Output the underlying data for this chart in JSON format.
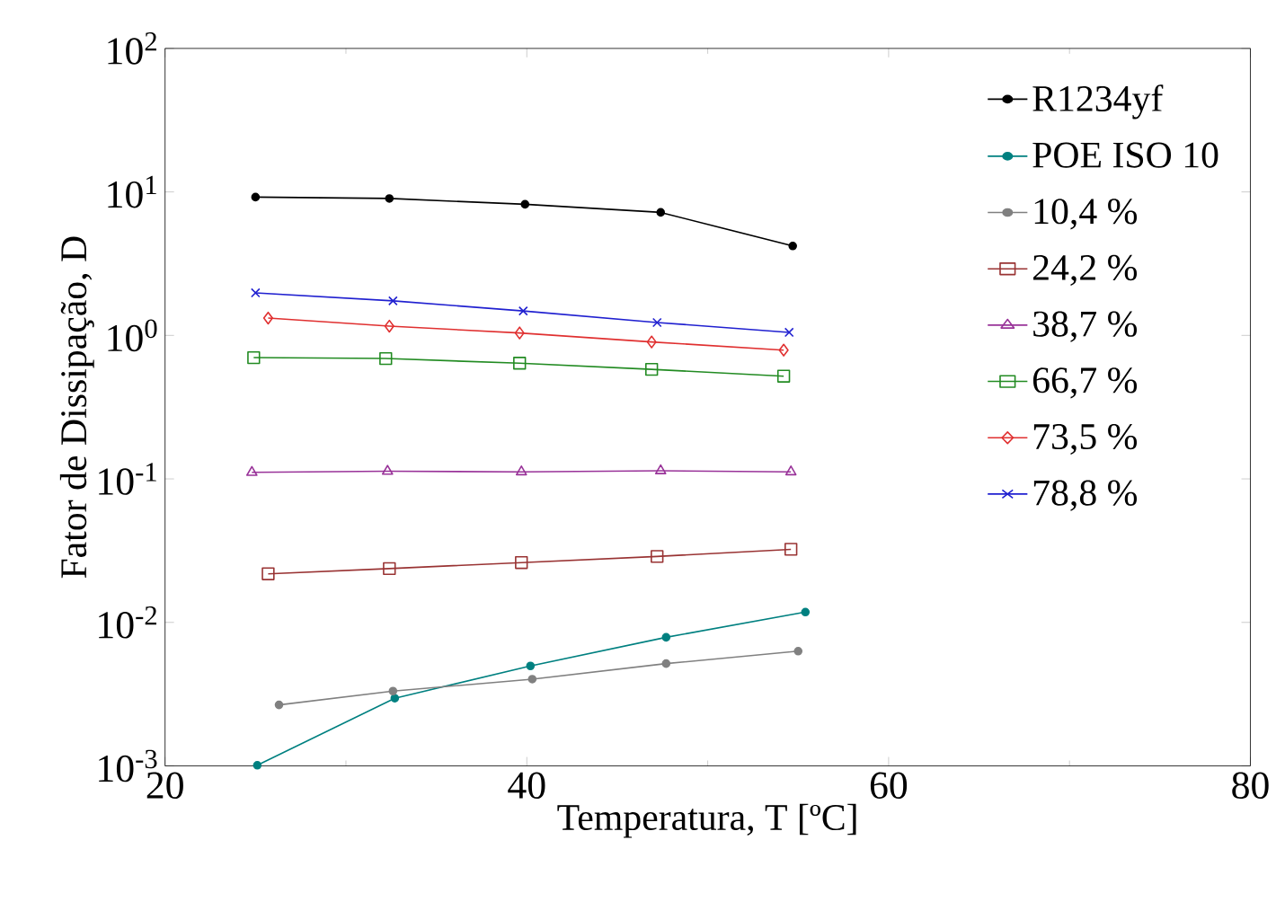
{
  "chart_data": {
    "type": "line",
    "xlabel": "Temperatura, T [ºC]",
    "ylabel": "Fator de Dissipação, D",
    "xlim": [
      20,
      80
    ],
    "xticks": [
      20,
      40,
      60,
      80
    ],
    "ylim": [
      0.001,
      100
    ],
    "yticks": [
      {
        "value": 0.001,
        "label": "10$^{-3}$"
      },
      {
        "value": 0.01,
        "label": "10$^{-2}$"
      },
      {
        "value": 0.1,
        "label": "10$^{-1}$"
      },
      {
        "value": 1,
        "label": "10$^{0}$"
      },
      {
        "value": 10,
        "label": "10$^{1}$"
      },
      {
        "value": 100,
        "label": "10$^{2}$"
      }
    ],
    "log": "y",
    "grid": false,
    "legend": "right",
    "line_style": "solid",
    "series": [
      {
        "name": "R1234yf",
        "color": "#000000",
        "marker": "circle",
        "x": [
          25.0,
          32.4,
          39.9,
          47.4,
          54.7
        ],
        "values": [
          9.2,
          9.0,
          8.2,
          7.2,
          4.2
        ]
      },
      {
        "name": "POE ISO 10",
        "color": "#008080",
        "marker": "circle",
        "x": [
          25.1,
          32.7,
          40.2,
          47.7,
          55.4
        ],
        "values": [
          0.00101,
          0.00296,
          0.00497,
          0.00787,
          0.0118
        ]
      },
      {
        "name": "10,4 %",
        "color": "#808080",
        "marker": "circle",
        "x": [
          26.3,
          32.6,
          40.3,
          47.7,
          55.0
        ],
        "values": [
          0.00266,
          0.00332,
          0.00402,
          0.00516,
          0.0063
        ]
      },
      {
        "name": "24,2 %",
        "color": "#993333",
        "marker": "square",
        "x": [
          25.7,
          32.4,
          39.7,
          47.2,
          54.6
        ],
        "values": [
          0.0218,
          0.0237,
          0.0261,
          0.0288,
          0.0323
        ]
      },
      {
        "name": "38,7 %",
        "color": "#993399",
        "marker": "triangle",
        "x": [
          24.8,
          32.3,
          39.7,
          47.4,
          54.6
        ],
        "values": [
          0.111,
          0.113,
          0.112,
          0.114,
          0.112
        ]
      },
      {
        "name": "66,7 %",
        "color": "#228B22",
        "marker": "square",
        "x": [
          24.9,
          32.2,
          39.6,
          46.9,
          54.2
        ],
        "values": [
          0.7,
          0.69,
          0.64,
          0.58,
          0.52
        ]
      },
      {
        "name": "73,5 %",
        "color": "#E03030",
        "marker": "diamond",
        "x": [
          25.7,
          32.4,
          39.6,
          46.9,
          54.2
        ],
        "values": [
          1.32,
          1.16,
          1.04,
          0.9,
          0.79
        ]
      },
      {
        "name": "78,8 %",
        "color": "#2020D0",
        "marker": "cross",
        "x": [
          25.0,
          32.6,
          39.8,
          47.2,
          54.5
        ],
        "values": [
          1.98,
          1.74,
          1.48,
          1.23,
          1.05
        ]
      }
    ]
  }
}
